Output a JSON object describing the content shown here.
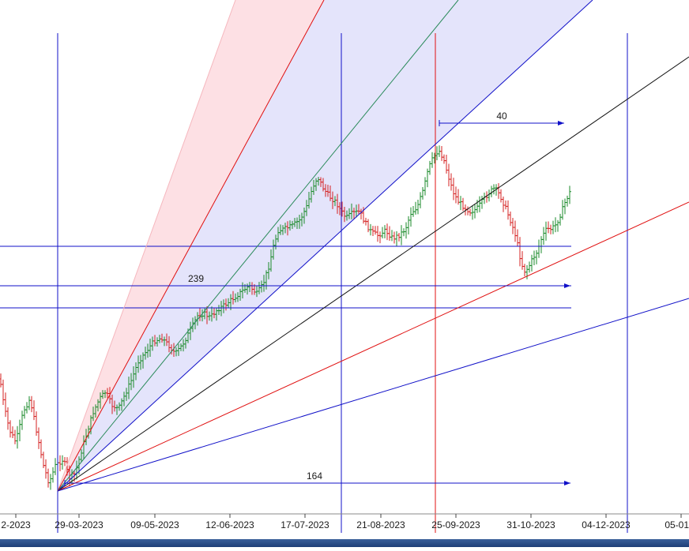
{
  "chart_data": {
    "type": "ohlc",
    "title": "",
    "xlabel": "",
    "ylabel": "",
    "grid": false,
    "legend": "none",
    "x_tick_labels": [
      "2-2023",
      "29-03-2023",
      "09-05-2023",
      "12-06-2023",
      "17-07-2023",
      "21-08-2023",
      "25-09-2023",
      "31-10-2023",
      "04-12-2023",
      "05-01-2"
    ],
    "bar_colors": {
      "up": "#1a8a2a",
      "down": "#d42020"
    },
    "price_path": [
      [
        0,
        480
      ],
      [
        5,
        515
      ],
      [
        12,
        545
      ],
      [
        20,
        560
      ],
      [
        30,
        520
      ],
      [
        38,
        505
      ],
      [
        45,
        540
      ],
      [
        55,
        590
      ],
      [
        62,
        612
      ],
      [
        70,
        590
      ],
      [
        80,
        582
      ],
      [
        88,
        605
      ],
      [
        95,
        600
      ],
      [
        102,
        575
      ],
      [
        110,
        548
      ],
      [
        118,
        522
      ],
      [
        126,
        505
      ],
      [
        134,
        496
      ],
      [
        141,
        513
      ],
      [
        150,
        518
      ],
      [
        158,
        500
      ],
      [
        166,
        482
      ],
      [
        175,
        458
      ],
      [
        185,
        445
      ],
      [
        195,
        432
      ],
      [
        205,
        428
      ],
      [
        214,
        438
      ],
      [
        222,
        448
      ],
      [
        230,
        438
      ],
      [
        240,
        420
      ],
      [
        250,
        400
      ],
      [
        258,
        397
      ],
      [
        266,
        402
      ],
      [
        275,
        392
      ],
      [
        285,
        386
      ],
      [
        295,
        378
      ],
      [
        305,
        370
      ],
      [
        315,
        362
      ],
      [
        325,
        372
      ],
      [
        333,
        360
      ],
      [
        340,
        338
      ],
      [
        346,
        312
      ],
      [
        352,
        292
      ],
      [
        360,
        290
      ],
      [
        370,
        286
      ],
      [
        380,
        278
      ],
      [
        388,
        262
      ],
      [
        396,
        236
      ],
      [
        402,
        224
      ],
      [
        410,
        240
      ],
      [
        418,
        250
      ],
      [
        425,
        256
      ],
      [
        432,
        268
      ],
      [
        438,
        276
      ],
      [
        446,
        270
      ],
      [
        455,
        268
      ],
      [
        462,
        282
      ],
      [
        470,
        294
      ],
      [
        478,
        298
      ],
      [
        488,
        292
      ],
      [
        497,
        302
      ],
      [
        505,
        298
      ],
      [
        513,
        290
      ],
      [
        520,
        270
      ],
      [
        528,
        262
      ],
      [
        536,
        240
      ],
      [
        542,
        214
      ],
      [
        548,
        200
      ],
      [
        555,
        190
      ],
      [
        561,
        200
      ],
      [
        567,
        222
      ],
      [
        573,
        242
      ],
      [
        579,
        254
      ],
      [
        587,
        262
      ],
      [
        595,
        268
      ],
      [
        603,
        265
      ],
      [
        611,
        254
      ],
      [
        619,
        244
      ],
      [
        626,
        238
      ],
      [
        633,
        248
      ],
      [
        640,
        264
      ],
      [
        647,
        282
      ],
      [
        653,
        300
      ],
      [
        658,
        325
      ],
      [
        663,
        344
      ],
      [
        668,
        340
      ],
      [
        674,
        328
      ],
      [
        680,
        318
      ],
      [
        686,
        300
      ],
      [
        692,
        290
      ],
      [
        698,
        290
      ],
      [
        704,
        284
      ],
      [
        710,
        270
      ],
      [
        716,
        254
      ],
      [
        722,
        242
      ]
    ],
    "annotations": [
      {
        "kind": "bar-count",
        "label": "239"
      },
      {
        "kind": "bar-count",
        "label": "40"
      },
      {
        "kind": "bar-count",
        "label": "164"
      }
    ]
  }
}
